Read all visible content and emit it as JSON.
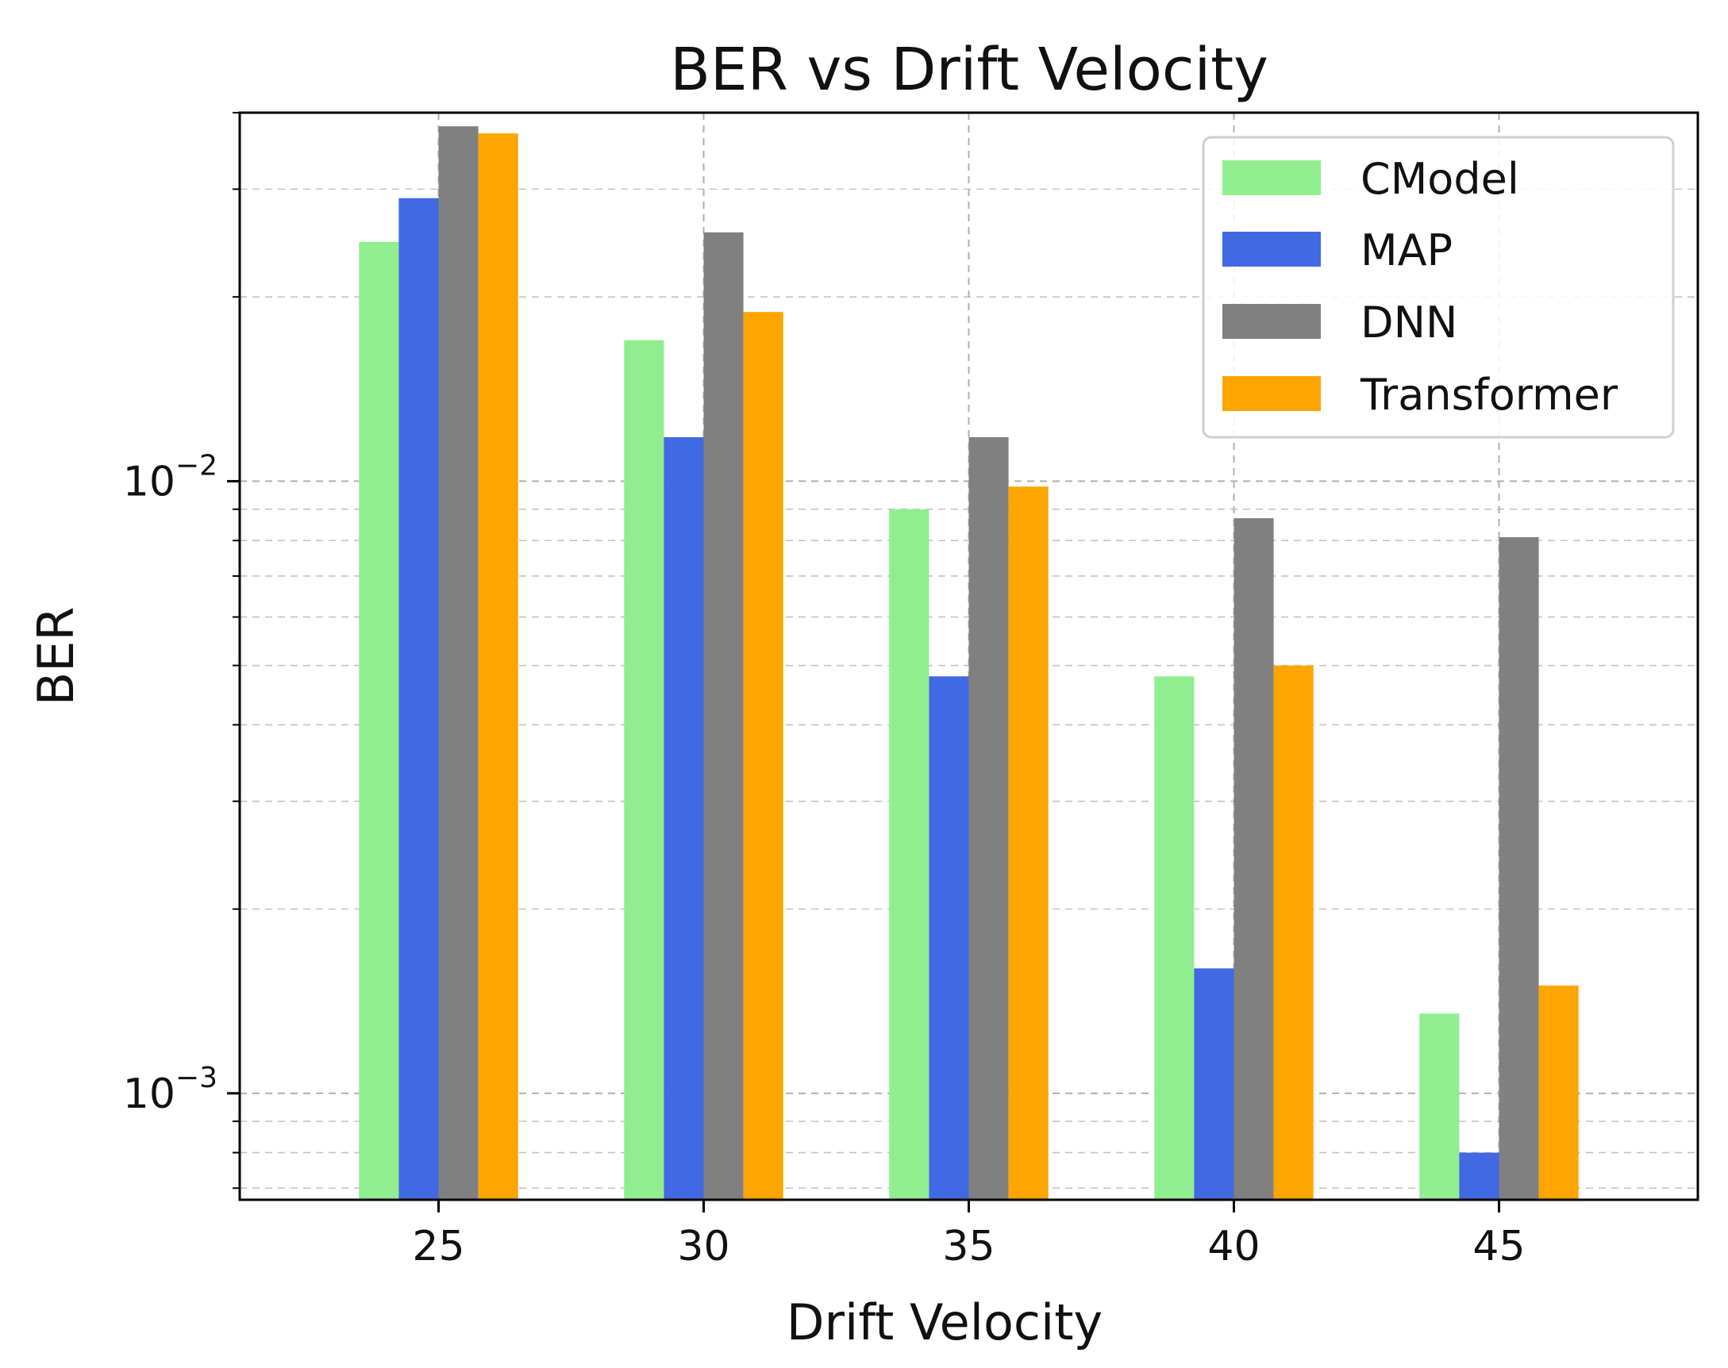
{
  "chart_data": {
    "type": "bar",
    "title": "BER vs Drift Velocity",
    "xlabel": "Drift Velocity",
    "ylabel": "BER",
    "yscale": "log",
    "ylim": [
      0.00067,
      0.04
    ],
    "categories": [
      "25",
      "30",
      "35",
      "40",
      "45"
    ],
    "series": [
      {
        "name": "CModel",
        "color": "#90EE90",
        "values": [
          0.0246,
          0.017,
          0.009,
          0.0048,
          0.00135
        ]
      },
      {
        "name": "MAP",
        "color": "#4169E1",
        "values": [
          0.029,
          0.0118,
          0.0048,
          0.0016,
          0.0008
        ]
      },
      {
        "name": "DNN",
        "color": "#808080",
        "values": [
          0.038,
          0.0255,
          0.0118,
          0.0087,
          0.0081
        ]
      },
      {
        "name": "Transformer",
        "color": "#FFA500",
        "values": [
          0.037,
          0.0189,
          0.0098,
          0.005,
          0.0015
        ]
      }
    ],
    "yticks": [
      {
        "value": 0.01,
        "base": "10",
        "exp": "−2"
      },
      {
        "value": 0.001,
        "base": "10",
        "exp": "−3"
      }
    ],
    "grid": true,
    "legend_position": "upper right"
  }
}
